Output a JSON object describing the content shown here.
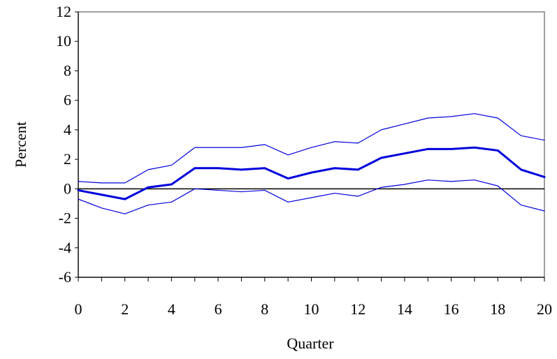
{
  "chart_data": {
    "type": "line",
    "xlabel": "Quarter",
    "ylabel": "Percent",
    "xlim": [
      0,
      20
    ],
    "ylim": [
      -6,
      12
    ],
    "x_ticks": [
      0,
      2,
      4,
      6,
      8,
      10,
      12,
      14,
      16,
      18,
      20
    ],
    "y_ticks": [
      12,
      10,
      8,
      6,
      4,
      2,
      0,
      -2,
      -4,
      -6
    ],
    "grid": false,
    "legend": "none",
    "zero_line": true,
    "x": [
      0,
      1,
      2,
      3,
      4,
      5,
      6,
      7,
      8,
      9,
      10,
      11,
      12,
      13,
      14,
      15,
      16,
      17,
      18,
      19,
      20
    ],
    "series": [
      {
        "role": "upper-band",
        "color": "#0000dd",
        "values": [
          0.5,
          0.4,
          0.4,
          1.3,
          1.6,
          2.8,
          2.8,
          2.8,
          3.0,
          2.3,
          2.8,
          3.2,
          3.1,
          4.0,
          4.4,
          4.8,
          4.9,
          5.1,
          4.8,
          3.6,
          3.3
        ]
      },
      {
        "role": "point-estimate",
        "color": "#0000dd",
        "values": [
          -0.1,
          -0.4,
          -0.7,
          0.1,
          0.3,
          1.4,
          1.4,
          1.3,
          1.4,
          0.7,
          1.1,
          1.4,
          1.3,
          2.1,
          2.4,
          2.7,
          2.7,
          2.8,
          2.6,
          1.3,
          0.8
        ]
      },
      {
        "role": "lower-band",
        "color": "#0000dd",
        "values": [
          -0.7,
          -1.3,
          -1.7,
          -1.1,
          -0.9,
          0.0,
          -0.1,
          -0.2,
          -0.1,
          -0.9,
          -0.6,
          -0.3,
          -0.5,
          0.1,
          0.3,
          0.6,
          0.5,
          0.6,
          0.2,
          -1.1,
          -1.5
        ]
      }
    ]
  }
}
